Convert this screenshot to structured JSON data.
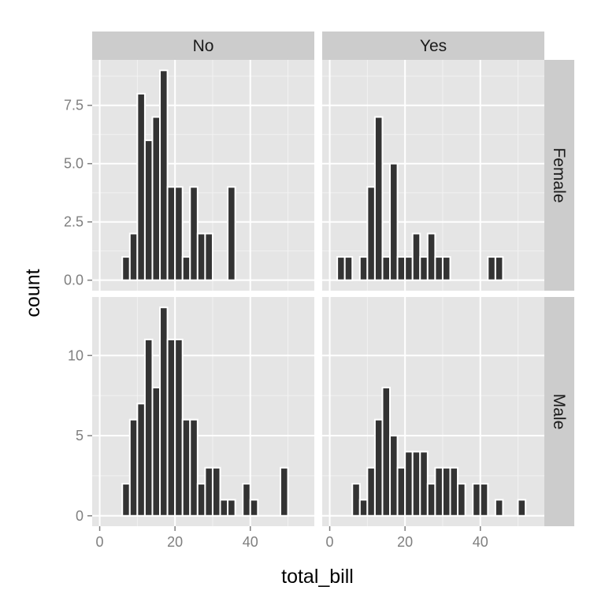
{
  "chart_data": {
    "type": "bar",
    "xlabel": "total_bill",
    "ylabel": "count",
    "bin_width": 2.0,
    "xlim": [
      -2,
      57
    ],
    "x_ticks": [
      {
        "value": 0,
        "label": "0"
      },
      {
        "value": 20,
        "label": "20"
      },
      {
        "value": 40,
        "label": "40"
      }
    ],
    "column_strips": [
      "No",
      "Yes"
    ],
    "row_strips": [
      "Female",
      "Male"
    ],
    "rows": [
      {
        "name": "Female",
        "ylim": [
          -0.45,
          9.45
        ],
        "y_ticks": [
          {
            "value": 0,
            "label": "0.0"
          },
          {
            "value": 2.5,
            "label": "2.5"
          },
          {
            "value": 5,
            "label": "5.0"
          },
          {
            "value": 7.5,
            "label": "7.5"
          }
        ]
      },
      {
        "name": "Male",
        "ylim": [
          -0.65,
          13.65
        ],
        "y_ticks": [
          {
            "value": 0,
            "label": "0"
          },
          {
            "value": 5,
            "label": "5"
          },
          {
            "value": 10,
            "label": "10"
          }
        ]
      }
    ],
    "panels": [
      {
        "row": 0,
        "col": 0,
        "bars": [
          {
            "x": 7,
            "count": 1
          },
          {
            "x": 9,
            "count": 2
          },
          {
            "x": 11,
            "count": 8
          },
          {
            "x": 13,
            "count": 6
          },
          {
            "x": 15,
            "count": 7
          },
          {
            "x": 17,
            "count": 9
          },
          {
            "x": 19,
            "count": 4
          },
          {
            "x": 21,
            "count": 4
          },
          {
            "x": 23,
            "count": 1
          },
          {
            "x": 25,
            "count": 4
          },
          {
            "x": 27,
            "count": 2
          },
          {
            "x": 29,
            "count": 2
          },
          {
            "x": 35,
            "count": 4
          }
        ]
      },
      {
        "row": 0,
        "col": 1,
        "bars": [
          {
            "x": 3,
            "count": 1
          },
          {
            "x": 5,
            "count": 1
          },
          {
            "x": 9,
            "count": 1
          },
          {
            "x": 11,
            "count": 4
          },
          {
            "x": 13,
            "count": 7
          },
          {
            "x": 15,
            "count": 1
          },
          {
            "x": 17,
            "count": 5
          },
          {
            "x": 19,
            "count": 1
          },
          {
            "x": 21,
            "count": 1
          },
          {
            "x": 23,
            "count": 2
          },
          {
            "x": 25,
            "count": 1
          },
          {
            "x": 27,
            "count": 2
          },
          {
            "x": 29,
            "count": 1
          },
          {
            "x": 31,
            "count": 1
          },
          {
            "x": 43,
            "count": 1
          },
          {
            "x": 45,
            "count": 1
          }
        ]
      },
      {
        "row": 1,
        "col": 0,
        "bars": [
          {
            "x": 7,
            "count": 2
          },
          {
            "x": 9,
            "count": 6
          },
          {
            "x": 11,
            "count": 7
          },
          {
            "x": 13,
            "count": 11
          },
          {
            "x": 15,
            "count": 8
          },
          {
            "x": 17,
            "count": 13
          },
          {
            "x": 19,
            "count": 11
          },
          {
            "x": 21,
            "count": 11
          },
          {
            "x": 23,
            "count": 6
          },
          {
            "x": 25,
            "count": 6
          },
          {
            "x": 27,
            "count": 2
          },
          {
            "x": 29,
            "count": 3
          },
          {
            "x": 31,
            "count": 3
          },
          {
            "x": 33,
            "count": 1
          },
          {
            "x": 35,
            "count": 1
          },
          {
            "x": 39,
            "count": 2
          },
          {
            "x": 41,
            "count": 1
          },
          {
            "x": 49,
            "count": 3
          }
        ]
      },
      {
        "row": 1,
        "col": 1,
        "bars": [
          {
            "x": 7,
            "count": 2
          },
          {
            "x": 9,
            "count": 1
          },
          {
            "x": 11,
            "count": 3
          },
          {
            "x": 13,
            "count": 6
          },
          {
            "x": 15,
            "count": 8
          },
          {
            "x": 17,
            "count": 5
          },
          {
            "x": 19,
            "count": 3
          },
          {
            "x": 21,
            "count": 4
          },
          {
            "x": 23,
            "count": 4
          },
          {
            "x": 25,
            "count": 4
          },
          {
            "x": 27,
            "count": 2
          },
          {
            "x": 29,
            "count": 3
          },
          {
            "x": 31,
            "count": 3
          },
          {
            "x": 33,
            "count": 3
          },
          {
            "x": 35,
            "count": 2
          },
          {
            "x": 39,
            "count": 2
          },
          {
            "x": 41,
            "count": 2
          },
          {
            "x": 45,
            "count": 1
          },
          {
            "x": 51,
            "count": 1
          }
        ]
      }
    ],
    "colors": {
      "panel_background": "#e5e5e5",
      "strip_background": "#cccccc",
      "grid_major": "#ffffff",
      "grid_minor": "#f2f2f2",
      "bar_fill": "#333333",
      "bar_outline": "#ffffff",
      "tick_mark": "#7f7f7f"
    }
  }
}
